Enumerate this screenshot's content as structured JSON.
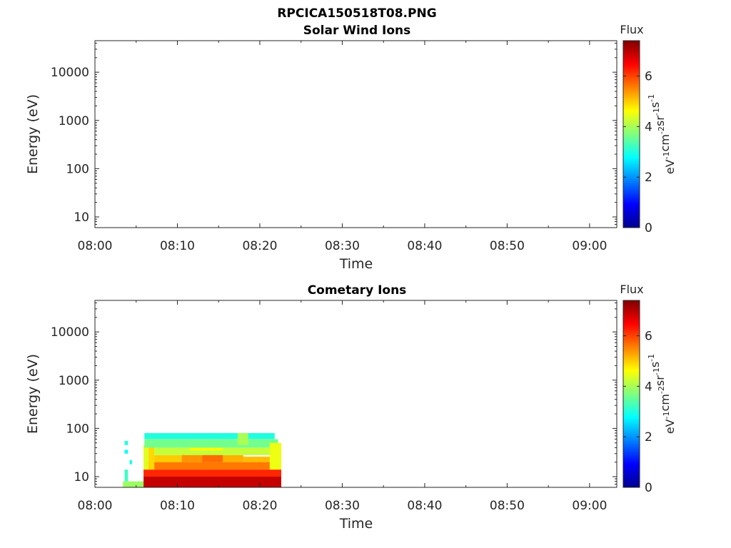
{
  "figure": {
    "title": "RPCICA150518T08.PNG"
  },
  "colors": {
    "axis": "#262626",
    "background": "#ffffff",
    "colormap": "jet"
  },
  "chart_data": [
    {
      "type": "heatmap",
      "title": "Solar Wind Ions",
      "xlabel": "Time",
      "ylabel": "Energy (eV)",
      "x_ticks": [
        "08:00",
        "08:10",
        "08:20",
        "08:30",
        "08:40",
        "08:50",
        "09:00"
      ],
      "x_range_minutes": [
        0,
        63.3
      ],
      "y_scale": "log",
      "y_range": [
        6,
        45000
      ],
      "y_ticks": [
        10,
        100,
        1000,
        10000
      ],
      "y_tick_labels": [
        "10",
        "100",
        "1000",
        "10000"
      ],
      "grid": false,
      "colorbar": {
        "label": "Flux",
        "unit_base": [
          "eV",
          "cm",
          "sr",
          "s"
        ],
        "unit_exp": [
          "-1",
          "-2",
          "-1",
          "-1"
        ],
        "range": [
          0,
          7.4
        ],
        "ticks": [
          0,
          2,
          4,
          6
        ],
        "tick_labels": [
          "0",
          "2",
          "4",
          "6"
        ]
      },
      "cells": []
    },
    {
      "type": "heatmap",
      "title": "Cometary Ions",
      "xlabel": "Time",
      "ylabel": "Energy (eV)",
      "x_ticks": [
        "08:00",
        "08:10",
        "08:20",
        "08:30",
        "08:40",
        "08:50",
        "09:00"
      ],
      "x_range_minutes": [
        0,
        63.3
      ],
      "y_scale": "log",
      "y_range": [
        6,
        45000
      ],
      "y_ticks": [
        10,
        100,
        1000,
        10000
      ],
      "y_tick_labels": [
        "10",
        "100",
        "1000",
        "10000"
      ],
      "grid": false,
      "colorbar": {
        "label": "Flux",
        "unit_base": [
          "eV",
          "cm",
          "sr",
          "s"
        ],
        "unit_exp": [
          "-1",
          "-2",
          "-1",
          "-1"
        ],
        "range": [
          0,
          7.4
        ],
        "ticks": [
          0,
          2,
          4,
          6
        ],
        "tick_labels": [
          "0",
          "2",
          "4",
          "6"
        ]
      },
      "cells": [
        {
          "t0": 3.4,
          "t1": 5.9,
          "e0": 6,
          "e1": 8,
          "v": 3.9
        },
        {
          "t0": 3.6,
          "t1": 4.0,
          "e0": 8,
          "e1": 14,
          "v": 3.2
        },
        {
          "t0": 3.6,
          "t1": 4.0,
          "e0": 45,
          "e1": 55,
          "v": 3.0
        },
        {
          "t0": 3.6,
          "t1": 4.0,
          "e0": 30,
          "e1": 36,
          "v": 2.8
        },
        {
          "t0": 4.2,
          "t1": 4.5,
          "e0": 18,
          "e1": 22,
          "v": 3.0
        },
        {
          "t0": 5.9,
          "t1": 22.6,
          "e0": 6,
          "e1": 10,
          "v": 6.9
        },
        {
          "t0": 5.9,
          "t1": 22.6,
          "e0": 10,
          "e1": 14,
          "v": 6.2
        },
        {
          "t0": 6.2,
          "t1": 22.6,
          "e0": 14,
          "e1": 20,
          "v": 5.6
        },
        {
          "t0": 5.9,
          "t1": 6.5,
          "e0": 14,
          "e1": 45,
          "v": 4.4
        },
        {
          "t0": 6.5,
          "t1": 7.2,
          "e0": 14,
          "e1": 60,
          "v": 4.9
        },
        {
          "t0": 7.2,
          "t1": 10.5,
          "e0": 20,
          "e1": 28,
          "v": 5.0
        },
        {
          "t0": 10.5,
          "t1": 13.0,
          "e0": 20,
          "e1": 30,
          "v": 5.4
        },
        {
          "t0": 13.0,
          "t1": 15.5,
          "e0": 20,
          "e1": 35,
          "v": 5.7
        },
        {
          "t0": 15.5,
          "t1": 18.0,
          "e0": 20,
          "e1": 28,
          "v": 5.2
        },
        {
          "t0": 18.0,
          "t1": 22.6,
          "e0": 20,
          "e1": 26,
          "v": 5.1
        },
        {
          "t0": 7.2,
          "t1": 22.6,
          "e0": 28,
          "e1": 40,
          "v": 4.2
        },
        {
          "t0": 11.5,
          "t1": 15.5,
          "e0": 35,
          "e1": 45,
          "v": 4.6
        },
        {
          "t0": 6.0,
          "t1": 22.2,
          "e0": 40,
          "e1": 60,
          "v": 3.6
        },
        {
          "t0": 6.0,
          "t1": 21.8,
          "e0": 60,
          "e1": 80,
          "v": 3.0
        },
        {
          "t0": 17.3,
          "t1": 18.6,
          "e0": 45,
          "e1": 80,
          "v": 4.0
        },
        {
          "t0": 21.2,
          "t1": 22.6,
          "e0": 14,
          "e1": 50,
          "v": 4.5
        }
      ]
    }
  ]
}
